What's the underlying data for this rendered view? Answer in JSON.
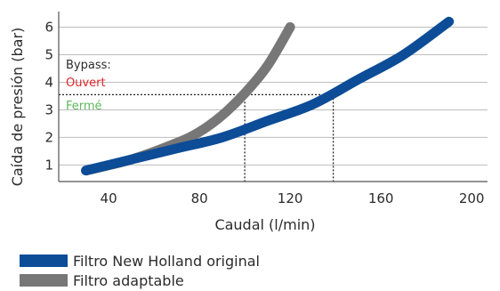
{
  "chart_data": {
    "type": "line",
    "ylabel": "Caída de presión (bar)",
    "xlabel": "Caudal (l/min)",
    "xlim": [
      18,
      207
    ],
    "ylim": [
      0.4,
      6.5
    ],
    "x_ticks": [
      40,
      80,
      120,
      160,
      200
    ],
    "y_ticks": [
      1,
      2,
      3,
      4,
      5,
      6
    ],
    "grid": "horizontal",
    "series": [
      {
        "name": "Filtro New Holland original",
        "color": "#0d4c97",
        "x": [
          30,
          50,
          70,
          90,
          110,
          130,
          150,
          170,
          190
        ],
        "y": [
          0.8,
          1.2,
          1.6,
          2.0,
          2.6,
          3.2,
          4.1,
          5.0,
          6.2
        ]
      },
      {
        "name": "Filtro adaptable",
        "color": "#777777",
        "x": [
          30,
          50,
          70,
          80,
          90,
          100,
          110,
          120
        ],
        "y": [
          0.8,
          1.2,
          1.8,
          2.2,
          2.8,
          3.6,
          4.6,
          6.0
        ]
      }
    ],
    "annotations": {
      "bypass_label": "Bypass:",
      "ouvert_label": "Ouvert",
      "ferme_label": "Fermé",
      "ouvert_color": "#e0262c",
      "ferme_color": "#5cb85c",
      "bypass_y": 3.55,
      "bypass_x_values": [
        100,
        139
      ]
    },
    "legend": [
      {
        "label": "Filtro New Holland original",
        "color": "#0d4c97"
      },
      {
        "label": "Filtro adaptable",
        "color": "#777777"
      }
    ]
  }
}
